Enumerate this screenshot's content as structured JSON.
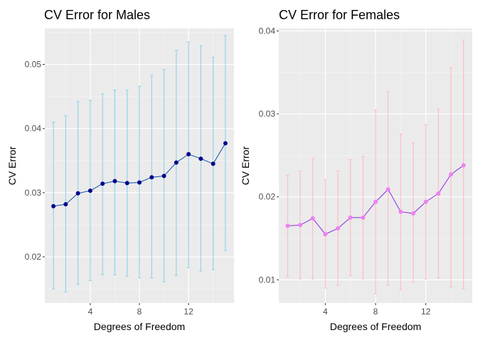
{
  "chart_data": [
    {
      "type": "line",
      "title": "CV Error for Males",
      "xlabel": "Degrees of Freedom",
      "ylabel": "CV Error",
      "xlim": [
        0.3,
        15.7
      ],
      "ylim": [
        0.0128,
        0.0556
      ],
      "x_ticks": [
        4,
        8,
        12
      ],
      "x_minor_ticks": [
        2,
        6,
        10,
        14
      ],
      "y_ticks": [
        0.02,
        0.03,
        0.04,
        0.05
      ],
      "y_minor_ticks": [
        0.015,
        0.025,
        0.035,
        0.045,
        0.055
      ],
      "grid": true,
      "error_bars": true,
      "line_color": "#0a4ea8",
      "point_color": "#00008b",
      "errorbar_color": "#87ceeb",
      "series": [
        {
          "x": [
            1,
            2,
            3,
            4,
            5,
            6,
            7,
            8,
            9,
            10,
            11,
            12,
            13,
            14,
            15
          ],
          "values": [
            0.0279,
            0.0282,
            0.0299,
            0.0303,
            0.0314,
            0.0318,
            0.0315,
            0.0316,
            0.0324,
            0.0326,
            0.0347,
            0.036,
            0.0353,
            0.0345,
            0.0377
          ],
          "lower": [
            0.015,
            0.0145,
            0.0157,
            0.0163,
            0.0172,
            0.0172,
            0.017,
            0.0167,
            0.0167,
            0.0161,
            0.0171,
            0.0183,
            0.0178,
            0.018,
            0.021
          ],
          "upper": [
            0.041,
            0.042,
            0.0442,
            0.0444,
            0.0454,
            0.046,
            0.046,
            0.0466,
            0.0483,
            0.0492,
            0.0522,
            0.0535,
            0.0529,
            0.0511,
            0.0545
          ]
        }
      ]
    },
    {
      "type": "line",
      "title": "CV Error for Females",
      "xlabel": "Degrees of Freedom",
      "ylabel": "CV Error",
      "xlim": [
        0.3,
        15.7
      ],
      "ylim": [
        0.0072,
        0.0403
      ],
      "x_ticks": [
        4,
        8,
        12
      ],
      "x_minor_ticks": [
        2,
        6,
        10,
        14
      ],
      "y_ticks": [
        0.01,
        0.02,
        0.03,
        0.04
      ],
      "y_minor_ticks": [
        0.015,
        0.025,
        0.035
      ],
      "grid": true,
      "error_bars": true,
      "line_color": "#8a2be2",
      "point_color": "#ee82ee",
      "errorbar_color": "#ffb6c1",
      "series": [
        {
          "x": [
            1,
            2,
            3,
            4,
            5,
            6,
            7,
            8,
            9,
            10,
            11,
            12,
            13,
            14,
            15
          ],
          "values": [
            0.0165,
            0.0166,
            0.0174,
            0.0155,
            0.0162,
            0.0175,
            0.0175,
            0.0194,
            0.0209,
            0.0182,
            0.018,
            0.0194,
            0.0204,
            0.0227,
            0.0238
          ],
          "lower": [
            0.0104,
            0.0101,
            0.0101,
            0.009,
            0.0093,
            0.0105,
            0.0101,
            0.0083,
            0.0093,
            0.0088,
            0.0097,
            0.0101,
            0.0102,
            0.0091,
            0.0089
          ],
          "upper": [
            0.0226,
            0.0231,
            0.0246,
            0.0221,
            0.0231,
            0.0245,
            0.0249,
            0.0305,
            0.0327,
            0.0276,
            0.0265,
            0.0287,
            0.0306,
            0.0356,
            0.0389
          ]
        }
      ]
    }
  ]
}
